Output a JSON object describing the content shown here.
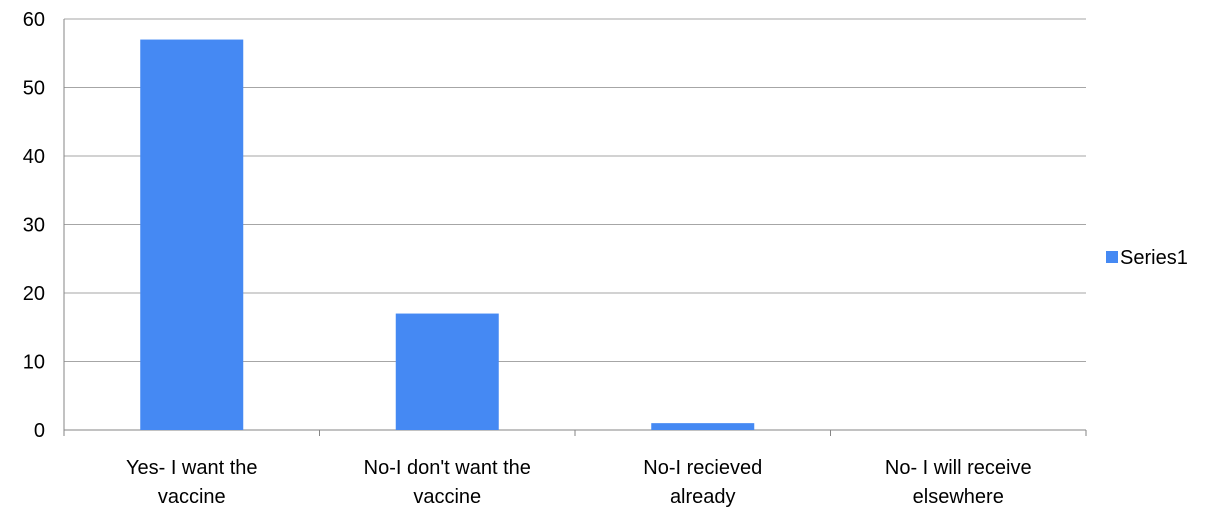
{
  "chart_data": {
    "type": "bar",
    "categories": [
      [
        "Yes- I want the",
        "vaccine"
      ],
      [
        "No-I don't want the",
        "vaccine"
      ],
      [
        "No-I recieved",
        "already"
      ],
      [
        "No- I will receive",
        "elsewhere"
      ]
    ],
    "series": [
      {
        "name": "Series1",
        "values": [
          57,
          17,
          1,
          0
        ],
        "color": "#4589f3"
      }
    ],
    "ylim": [
      0,
      60
    ],
    "yticks": [
      0,
      10,
      20,
      30,
      40,
      50,
      60
    ],
    "grid": true,
    "legend_position": "right",
    "gridline_color": "#a6a6a6",
    "title": "",
    "xlabel": "",
    "ylabel": ""
  }
}
